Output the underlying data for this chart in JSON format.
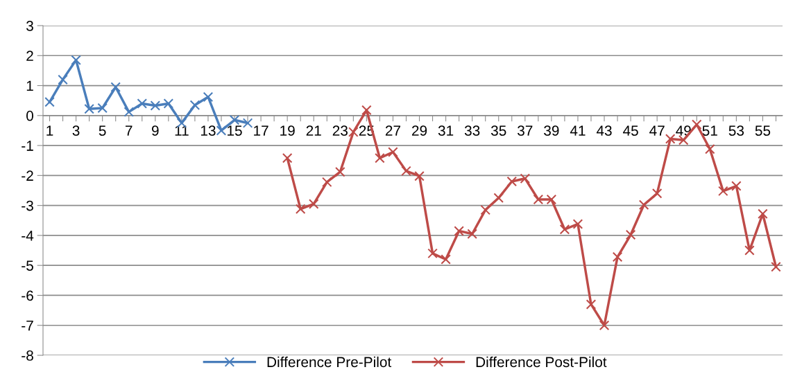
{
  "chart_data": {
    "type": "line",
    "categories": [
      "1",
      null,
      "3",
      null,
      "5",
      null,
      "7",
      null,
      "9",
      null,
      "11",
      null,
      "13",
      null,
      "15",
      null,
      "17",
      null,
      "19",
      null,
      "21",
      null,
      "23",
      null,
      "25",
      null,
      "27",
      null,
      "29",
      null,
      "31",
      null,
      "33",
      null,
      "35",
      null,
      "37",
      null,
      "39",
      null,
      "41",
      null,
      "43",
      null,
      "45",
      null,
      "47",
      null,
      "49",
      null,
      "51",
      null,
      "53",
      null,
      "55",
      null
    ],
    "series": [
      {
        "name": "Difference Pre-Pilot",
        "color": "#4a7ebb",
        "values": [
          0.45,
          1.2,
          1.85,
          0.22,
          0.25,
          0.95,
          0.12,
          0.4,
          0.33,
          0.4,
          -0.25,
          0.35,
          0.62,
          -0.5,
          -0.15,
          -0.25,
          null,
          null,
          null,
          null,
          null,
          null,
          null,
          null,
          null,
          null,
          null,
          null,
          null,
          null,
          null,
          null,
          null,
          null,
          null,
          null,
          null,
          null,
          null,
          null,
          null,
          null,
          null,
          null,
          null,
          null,
          null,
          null,
          null,
          null,
          null,
          null,
          null,
          null,
          null,
          null
        ]
      },
      {
        "name": "Difference Post-Pilot",
        "color": "#be4b48",
        "values": [
          null,
          null,
          null,
          null,
          null,
          null,
          null,
          null,
          null,
          null,
          null,
          null,
          null,
          null,
          null,
          null,
          null,
          null,
          -1.42,
          -3.12,
          -2.95,
          -2.22,
          -1.88,
          -0.55,
          0.18,
          -1.42,
          -1.22,
          -1.85,
          -2.02,
          -4.6,
          -4.8,
          -3.85,
          -3.95,
          -3.15,
          -2.75,
          -2.2,
          -2.1,
          -2.8,
          -2.8,
          -3.8,
          -3.62,
          -6.3,
          -7.0,
          -4.72,
          -3.98,
          -2.98,
          -2.6,
          -0.78,
          -0.82,
          -0.3,
          -1.12,
          -2.52,
          -2.35,
          -4.5,
          -3.28,
          -5.05
        ]
      }
    ],
    "ylim": [
      -8,
      3
    ],
    "yticks": [
      -8,
      -7,
      -6,
      -5,
      -4,
      -3,
      -2,
      -1,
      0,
      1,
      2,
      3
    ],
    "grid": "y",
    "legend": "bottom",
    "marker": "cross",
    "line_style": "solid"
  }
}
